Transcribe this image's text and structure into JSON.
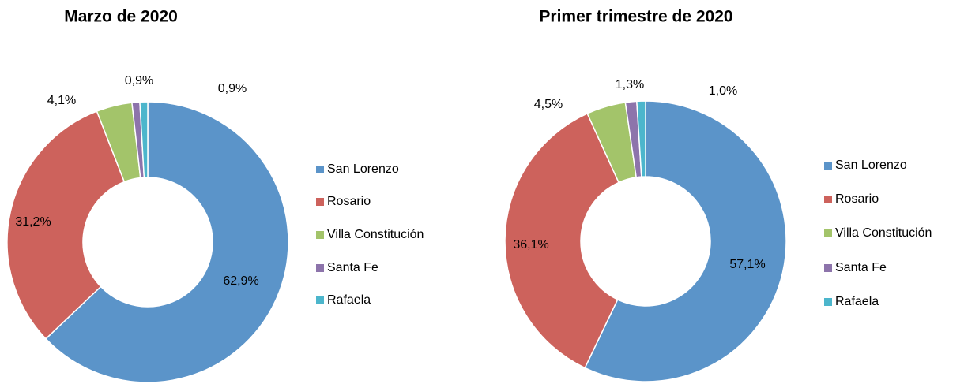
{
  "chart_data": [
    {
      "type": "donut",
      "title": "Marzo de 2020",
      "categories": [
        "San Lorenzo",
        "Rosario",
        "Villa Constitución",
        "Santa Fe",
        "Rafaela"
      ],
      "values": [
        62.9,
        31.2,
        4.1,
        0.9,
        0.9
      ],
      "value_labels": [
        "62,9%",
        "31,2%",
        "4,1%",
        "0,9%",
        "0,9%"
      ],
      "colors": [
        "#5b94c9",
        "#cd625c",
        "#a3c46a",
        "#8d74ab",
        "#4cb6cc"
      ],
      "legend": "right"
    },
    {
      "type": "donut",
      "title": "Primer trimestre de 2020",
      "categories": [
        "San Lorenzo",
        "Rosario",
        "Villa Constitución",
        "Santa Fe",
        "Rafaela"
      ],
      "values": [
        57.1,
        36.1,
        4.5,
        1.3,
        1.0
      ],
      "value_labels": [
        "57,1%",
        "36,1%",
        "4,5%",
        "1,3%",
        "1,0%"
      ],
      "colors": [
        "#5b94c9",
        "#cd625c",
        "#a3c46a",
        "#8d74ab",
        "#4cb6cc"
      ],
      "legend": "right"
    }
  ]
}
